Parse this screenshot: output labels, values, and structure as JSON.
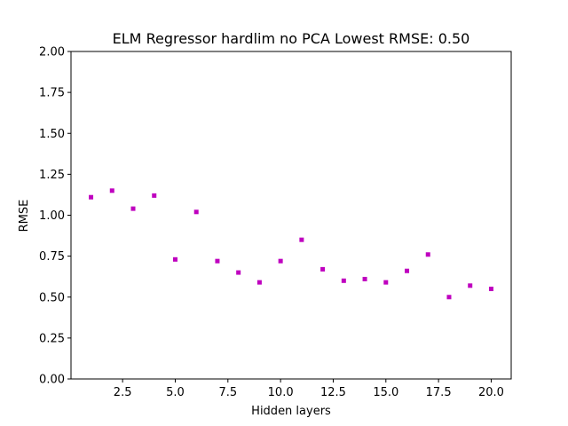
{
  "chart_data": {
    "type": "scatter",
    "title": "ELM Regressor hardlim no PCA Lowest RMSE: 0.50",
    "xlabel": "Hidden layers",
    "ylabel": "RMSE",
    "xlim": [
      0.05,
      20.95
    ],
    "ylim": [
      0,
      2
    ],
    "xticks": [
      "2.5",
      "5.0",
      "7.5",
      "10.0",
      "12.5",
      "15.0",
      "17.5",
      "20.0"
    ],
    "yticks": [
      "0.00",
      "0.25",
      "0.50",
      "0.75",
      "1.00",
      "1.25",
      "1.50",
      "1.75",
      "2.00"
    ],
    "grid": false,
    "marker_color": "#bf00bf",
    "series": [
      {
        "x": [
          1,
          2,
          3,
          4,
          5,
          6,
          7,
          8,
          9,
          10,
          11,
          12,
          13,
          14,
          15,
          16,
          17,
          18,
          19,
          20
        ],
        "y": [
          1.11,
          1.15,
          1.04,
          1.12,
          0.73,
          1.02,
          0.72,
          0.65,
          0.59,
          0.72,
          0.85,
          0.67,
          0.6,
          0.61,
          0.59,
          0.66,
          0.76,
          0.5,
          0.57,
          0.55
        ]
      }
    ]
  }
}
